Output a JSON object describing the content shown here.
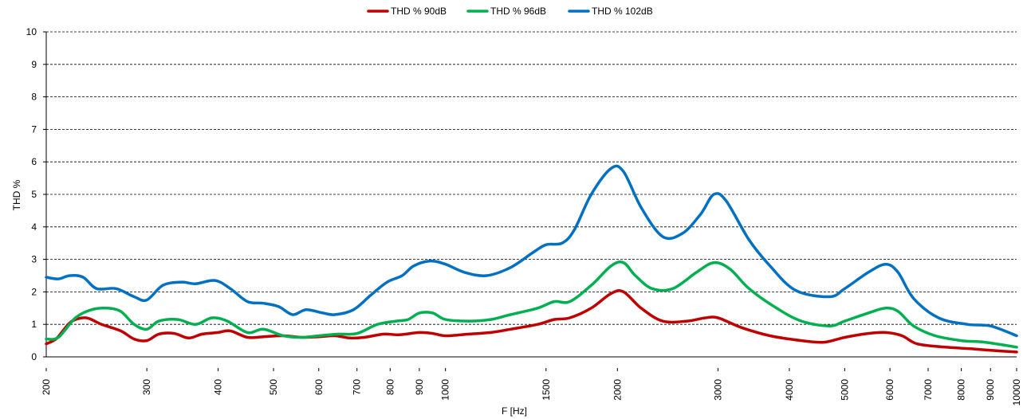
{
  "chart_data": {
    "type": "line",
    "title": "",
    "xlabel": "F [Hz]",
    "ylabel": "THD  %",
    "x_scale": "log",
    "xlim": [
      200,
      10000
    ],
    "ylim": [
      0,
      10
    ],
    "y_ticks": [
      "0",
      "1",
      "2",
      "3",
      "4",
      "5",
      "6",
      "7",
      "8",
      "9",
      "10"
    ],
    "x_ticks": [
      {
        "value": 200,
        "label": "200"
      },
      {
        "value": 300,
        "label": "300"
      },
      {
        "value": 400,
        "label": "400"
      },
      {
        "value": 500,
        "label": "500"
      },
      {
        "value": 600,
        "label": "600"
      },
      {
        "value": 700,
        "label": "700"
      },
      {
        "value": 800,
        "label": "800"
      },
      {
        "value": 900,
        "label": "900"
      },
      {
        "value": 1000,
        "label": "1000"
      },
      {
        "value": 1500,
        "label": "1500"
      },
      {
        "value": 2000,
        "label": "2000"
      },
      {
        "value": 3000,
        "label": "3000"
      },
      {
        "value": 4000,
        "label": "4000"
      },
      {
        "value": 5000,
        "label": "5000"
      },
      {
        "value": 6000,
        "label": "6000"
      },
      {
        "value": 7000,
        "label": "7000"
      },
      {
        "value": 8000,
        "label": "8000"
      },
      {
        "value": 9000,
        "label": "9000"
      },
      {
        "value": 10000,
        "label": "10000"
      }
    ],
    "grid": "horizontal dashed",
    "legend_position": "top-center",
    "series": [
      {
        "name": "THD % 90dB",
        "color": "#c00000",
        "points": [
          [
            200,
            0.4
          ],
          [
            208,
            0.55
          ],
          [
            215,
            0.85
          ],
          [
            222,
            1.1
          ],
          [
            235,
            1.2
          ],
          [
            250,
            1.0
          ],
          [
            270,
            0.8
          ],
          [
            285,
            0.55
          ],
          [
            300,
            0.5
          ],
          [
            315,
            0.7
          ],
          [
            335,
            0.72
          ],
          [
            355,
            0.58
          ],
          [
            375,
            0.7
          ],
          [
            400,
            0.75
          ],
          [
            420,
            0.8
          ],
          [
            450,
            0.6
          ],
          [
            480,
            0.62
          ],
          [
            520,
            0.65
          ],
          [
            560,
            0.6
          ],
          [
            600,
            0.62
          ],
          [
            640,
            0.65
          ],
          [
            680,
            0.58
          ],
          [
            720,
            0.6
          ],
          [
            780,
            0.7
          ],
          [
            830,
            0.68
          ],
          [
            900,
            0.75
          ],
          [
            950,
            0.72
          ],
          [
            1000,
            0.65
          ],
          [
            1100,
            0.7
          ],
          [
            1200,
            0.75
          ],
          [
            1300,
            0.85
          ],
          [
            1450,
            1.0
          ],
          [
            1550,
            1.15
          ],
          [
            1650,
            1.2
          ],
          [
            1800,
            1.5
          ],
          [
            1950,
            1.95
          ],
          [
            2050,
            2.0
          ],
          [
            2200,
            1.5
          ],
          [
            2400,
            1.1
          ],
          [
            2650,
            1.1
          ],
          [
            2850,
            1.2
          ],
          [
            3000,
            1.2
          ],
          [
            3300,
            0.9
          ],
          [
            3700,
            0.65
          ],
          [
            4200,
            0.5
          ],
          [
            4600,
            0.45
          ],
          [
            5000,
            0.6
          ],
          [
            5500,
            0.72
          ],
          [
            5900,
            0.75
          ],
          [
            6300,
            0.65
          ],
          [
            6700,
            0.4
          ],
          [
            7500,
            0.3
          ],
          [
            8300,
            0.25
          ],
          [
            9000,
            0.2
          ],
          [
            10000,
            0.15
          ]
        ]
      },
      {
        "name": "THD % 96dB",
        "color": "#00b050",
        "points": [
          [
            200,
            0.55
          ],
          [
            210,
            0.6
          ],
          [
            225,
            1.2
          ],
          [
            240,
            1.45
          ],
          [
            255,
            1.5
          ],
          [
            270,
            1.4
          ],
          [
            285,
            1.0
          ],
          [
            300,
            0.85
          ],
          [
            315,
            1.1
          ],
          [
            340,
            1.15
          ],
          [
            365,
            1.0
          ],
          [
            390,
            1.2
          ],
          [
            415,
            1.1
          ],
          [
            450,
            0.75
          ],
          [
            480,
            0.85
          ],
          [
            520,
            0.65
          ],
          [
            560,
            0.6
          ],
          [
            600,
            0.65
          ],
          [
            650,
            0.7
          ],
          [
            700,
            0.72
          ],
          [
            760,
            1.0
          ],
          [
            820,
            1.1
          ],
          [
            860,
            1.15
          ],
          [
            900,
            1.35
          ],
          [
            950,
            1.35
          ],
          [
            1000,
            1.15
          ],
          [
            1100,
            1.1
          ],
          [
            1200,
            1.15
          ],
          [
            1300,
            1.3
          ],
          [
            1450,
            1.5
          ],
          [
            1550,
            1.7
          ],
          [
            1650,
            1.7
          ],
          [
            1800,
            2.2
          ],
          [
            1950,
            2.8
          ],
          [
            2050,
            2.9
          ],
          [
            2150,
            2.5
          ],
          [
            2300,
            2.1
          ],
          [
            2500,
            2.1
          ],
          [
            2750,
            2.6
          ],
          [
            2950,
            2.9
          ],
          [
            3150,
            2.7
          ],
          [
            3400,
            2.1
          ],
          [
            3800,
            1.5
          ],
          [
            4200,
            1.1
          ],
          [
            4700,
            0.95
          ],
          [
            5000,
            1.1
          ],
          [
            5500,
            1.35
          ],
          [
            5900,
            1.5
          ],
          [
            6200,
            1.4
          ],
          [
            6600,
            0.95
          ],
          [
            7200,
            0.65
          ],
          [
            8000,
            0.5
          ],
          [
            8800,
            0.45
          ],
          [
            10000,
            0.3
          ]
        ]
      },
      {
        "name": "THD % 102dB",
        "color": "#0070c0",
        "points": [
          [
            200,
            2.45
          ],
          [
            210,
            2.4
          ],
          [
            220,
            2.5
          ],
          [
            232,
            2.45
          ],
          [
            245,
            2.1
          ],
          [
            265,
            2.1
          ],
          [
            285,
            1.85
          ],
          [
            300,
            1.75
          ],
          [
            320,
            2.2
          ],
          [
            345,
            2.3
          ],
          [
            365,
            2.25
          ],
          [
            395,
            2.35
          ],
          [
            420,
            2.1
          ],
          [
            450,
            1.7
          ],
          [
            480,
            1.65
          ],
          [
            510,
            1.55
          ],
          [
            540,
            1.3
          ],
          [
            570,
            1.45
          ],
          [
            610,
            1.35
          ],
          [
            640,
            1.3
          ],
          [
            690,
            1.45
          ],
          [
            740,
            1.9
          ],
          [
            790,
            2.3
          ],
          [
            840,
            2.5
          ],
          [
            880,
            2.8
          ],
          [
            940,
            2.95
          ],
          [
            1000,
            2.85
          ],
          [
            1080,
            2.6
          ],
          [
            1180,
            2.5
          ],
          [
            1300,
            2.75
          ],
          [
            1420,
            3.2
          ],
          [
            1500,
            3.45
          ],
          [
            1600,
            3.5
          ],
          [
            1680,
            3.9
          ],
          [
            1800,
            5.0
          ],
          [
            1950,
            5.8
          ],
          [
            2050,
            5.7
          ],
          [
            2200,
            4.6
          ],
          [
            2400,
            3.7
          ],
          [
            2600,
            3.8
          ],
          [
            2800,
            4.4
          ],
          [
            2950,
            5.0
          ],
          [
            3100,
            4.8
          ],
          [
            3400,
            3.6
          ],
          [
            3700,
            2.8
          ],
          [
            4100,
            2.05
          ],
          [
            4700,
            1.85
          ],
          [
            5000,
            2.1
          ],
          [
            5500,
            2.6
          ],
          [
            5900,
            2.85
          ],
          [
            6200,
            2.6
          ],
          [
            6600,
            1.8
          ],
          [
            7300,
            1.2
          ],
          [
            8200,
            1.0
          ],
          [
            9000,
            0.95
          ],
          [
            10000,
            0.65
          ]
        ]
      }
    ]
  }
}
